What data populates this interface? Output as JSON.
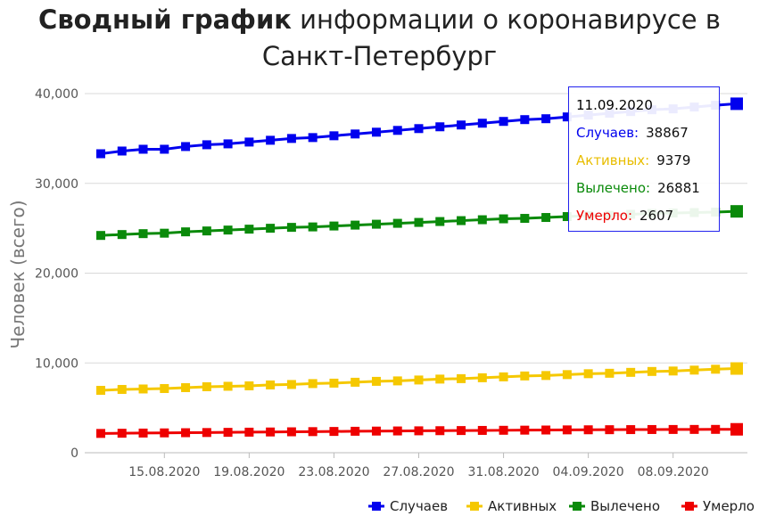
{
  "title": {
    "bold": "Сводный график",
    "rest": " информации о коронавирусе в",
    "line2": "Санкт-Петербург"
  },
  "colors": {
    "cases": "#0000ee",
    "active": "#f5c800",
    "recovered": "#0a8a0a",
    "deaths": "#ee0000",
    "grid": "#d9d9d9",
    "axis_text": "#555555"
  },
  "chart_data": {
    "type": "line",
    "ylabel": "Человек (всего)",
    "ylim": [
      0,
      40000
    ],
    "yticks": [
      "0",
      "10,000",
      "20,000",
      "30,000",
      "40,000"
    ],
    "xticks": [
      "15.08.2020",
      "19.08.2020",
      "23.08.2020",
      "27.08.2020",
      "31.08.2020",
      "04.09.2020",
      "08.09.2020"
    ],
    "x": [
      "12.08.2020",
      "13.08.2020",
      "14.08.2020",
      "15.08.2020",
      "16.08.2020",
      "17.08.2020",
      "18.08.2020",
      "19.08.2020",
      "20.08.2020",
      "21.08.2020",
      "22.08.2020",
      "23.08.2020",
      "24.08.2020",
      "25.08.2020",
      "26.08.2020",
      "27.08.2020",
      "28.08.2020",
      "29.08.2020",
      "30.08.2020",
      "31.08.2020",
      "01.09.2020",
      "02.09.2020",
      "03.09.2020",
      "04.09.2020",
      "05.09.2020",
      "06.09.2020",
      "07.09.2020",
      "08.09.2020",
      "09.09.2020",
      "10.09.2020",
      "11.09.2020"
    ],
    "series": [
      {
        "name": "Случаев",
        "color_key": "cases",
        "values": [
          33300,
          33600,
          33800,
          33800,
          34100,
          34300,
          34400,
          34600,
          34800,
          35000,
          35100,
          35300,
          35500,
          35700,
          35900,
          36100,
          36300,
          36500,
          36700,
          36900,
          37100,
          37200,
          37400,
          37600,
          37800,
          38000,
          38200,
          38300,
          38500,
          38700,
          38867
        ]
      },
      {
        "name": "Активных",
        "color_key": "active",
        "values": [
          6950,
          7050,
          7100,
          7150,
          7250,
          7350,
          7400,
          7450,
          7550,
          7600,
          7700,
          7750,
          7850,
          7950,
          8000,
          8100,
          8200,
          8250,
          8350,
          8450,
          8550,
          8600,
          8700,
          8800,
          8850,
          8950,
          9050,
          9100,
          9200,
          9300,
          9379
        ]
      },
      {
        "name": "Вылечено",
        "color_key": "recovered",
        "values": [
          24200,
          24300,
          24400,
          24450,
          24600,
          24700,
          24800,
          24900,
          25000,
          25100,
          25150,
          25250,
          25350,
          25450,
          25550,
          25650,
          25750,
          25850,
          25950,
          26050,
          26100,
          26200,
          26300,
          26400,
          26450,
          26550,
          26650,
          26700,
          26750,
          26800,
          26881
        ]
      },
      {
        "name": "Умерло",
        "color_key": "deaths",
        "values": [
          2150,
          2170,
          2190,
          2210,
          2230,
          2250,
          2270,
          2290,
          2310,
          2330,
          2350,
          2370,
          2390,
          2410,
          2425,
          2440,
          2455,
          2470,
          2485,
          2500,
          2515,
          2530,
          2545,
          2555,
          2565,
          2575,
          2585,
          2590,
          2595,
          2600,
          2607
        ]
      }
    ],
    "legend_position": "bottom-right",
    "grid": true
  },
  "tooltip": {
    "date": "11.09.2020",
    "rows": [
      {
        "label": "Случаев:",
        "value": "38867",
        "color_key": "cases"
      },
      {
        "label": "Активных:",
        "value": "9379",
        "color_key": "active"
      },
      {
        "label": "Вылечено:",
        "value": "26881",
        "color_key": "recovered"
      },
      {
        "label": "Умерло:",
        "value": "2607",
        "color_key": "deaths"
      }
    ]
  }
}
